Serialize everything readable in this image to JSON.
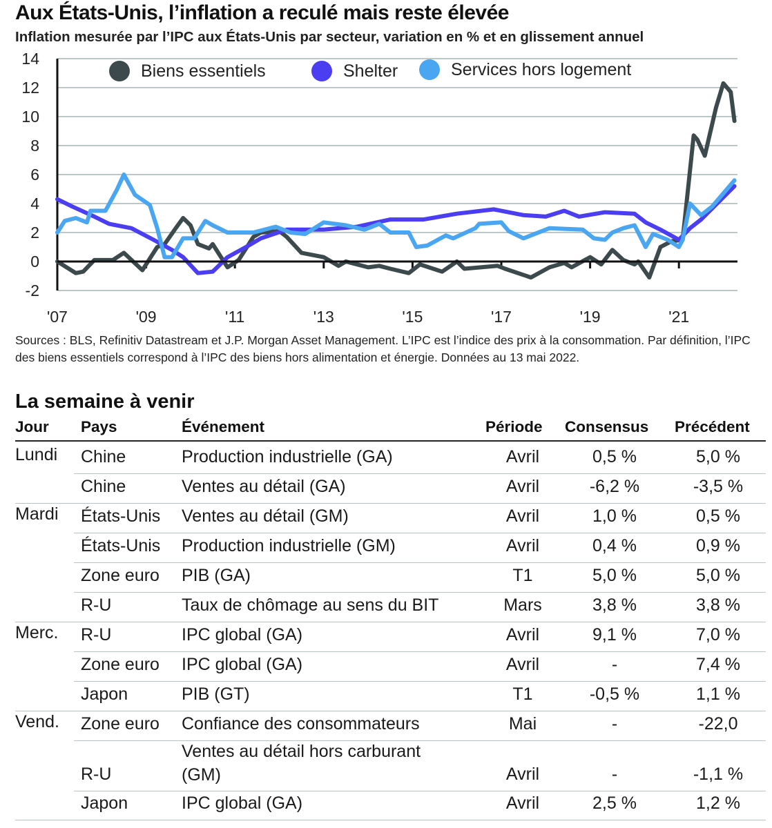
{
  "title": "Aux États-Unis, l’inflation a reculé mais reste élevée",
  "subtitle": "Inflation mesurée par l’IPC aux États-Unis par secteur, variation en % et en glissement annuel",
  "chart_data": {
    "type": "line",
    "title": "Aux États-Unis, l’inflation a reculé mais reste élevée",
    "ylim": [
      -2,
      14
    ],
    "yticks": [
      "14",
      "12",
      "10",
      "8",
      "6",
      "4",
      "2",
      "0",
      "-2"
    ],
    "xticks": [
      "'07",
      "'09",
      "'11",
      "'13",
      "'15",
      "'17",
      "'19",
      "'21"
    ],
    "xlim": [
      "2007-01",
      "2022-04"
    ],
    "grid": true,
    "legend_position": "top",
    "series": [
      {
        "name": "Biens essentiels",
        "color": "#3d4a4d",
        "points": [
          [
            "2007-01",
            0
          ],
          [
            "2007-06",
            -0.8
          ],
          [
            "2007-08",
            -0.7
          ],
          [
            "2007-11",
            0.1
          ],
          [
            "2008-04",
            0.1
          ],
          [
            "2008-07",
            0.6
          ],
          [
            "2008-12",
            -0.6
          ],
          [
            "2009-04",
            1.0
          ],
          [
            "2009-06",
            1.2
          ],
          [
            "2009-09",
            2.3
          ],
          [
            "2009-11",
            3.0
          ],
          [
            "2010-01",
            2.5
          ],
          [
            "2010-03",
            1.2
          ],
          [
            "2010-06",
            0.9
          ],
          [
            "2010-07",
            1.2
          ],
          [
            "2010-11",
            -0.4
          ],
          [
            "2011-02",
            0.1
          ],
          [
            "2011-06",
            1.7
          ],
          [
            "2011-08",
            2.0
          ],
          [
            "2012-01",
            2.1
          ],
          [
            "2012-03",
            1.7
          ],
          [
            "2012-07",
            0.6
          ],
          [
            "2013-01",
            0.3
          ],
          [
            "2013-05",
            -0.3
          ],
          [
            "2013-07",
            0
          ],
          [
            "2014-01",
            -0.4
          ],
          [
            "2014-04",
            -0.3
          ],
          [
            "2014-07",
            -0.5
          ],
          [
            "2014-12",
            -0.8
          ],
          [
            "2015-03",
            -0.2
          ],
          [
            "2015-09",
            -0.7
          ],
          [
            "2016-01",
            0.0
          ],
          [
            "2016-03",
            -0.5
          ],
          [
            "2016-12",
            -0.3
          ],
          [
            "2017-02",
            -0.5
          ],
          [
            "2017-09",
            -1.1
          ],
          [
            "2018-02",
            -0.4
          ],
          [
            "2018-06",
            -0.1
          ],
          [
            "2018-08",
            -0.4
          ],
          [
            "2019-01",
            0.3
          ],
          [
            "2019-04",
            -0.2
          ],
          [
            "2019-07",
            0.8
          ],
          [
            "2019-10",
            0.1
          ],
          [
            "2020-01",
            -0.2
          ],
          [
            "2020-02",
            0
          ],
          [
            "2020-05",
            -1.1
          ],
          [
            "2020-08",
            1.0
          ],
          [
            "2020-11",
            1.4
          ],
          [
            "2021-02",
            1.5
          ],
          [
            "2021-05",
            8.7
          ],
          [
            "2021-06",
            8.4
          ],
          [
            "2021-08",
            7.3
          ],
          [
            "2021-11",
            10.6
          ],
          [
            "2022-01",
            12.3
          ],
          [
            "2022-03",
            11.7
          ],
          [
            "2022-04",
            9.7
          ]
        ]
      },
      {
        "name": "Shelter",
        "color": "#4b3df0",
        "points": [
          [
            "2007-01",
            4.3
          ],
          [
            "2007-05",
            3.8
          ],
          [
            "2007-11",
            3.1
          ],
          [
            "2008-03",
            2.6
          ],
          [
            "2008-09",
            2.3
          ],
          [
            "2009-03",
            1.5
          ],
          [
            "2009-08",
            0.8
          ],
          [
            "2009-11",
            0.3
          ],
          [
            "2010-03",
            -0.8
          ],
          [
            "2010-07",
            -0.7
          ],
          [
            "2010-11",
            0.3
          ],
          [
            "2011-04",
            1.0
          ],
          [
            "2011-08",
            1.6
          ],
          [
            "2012-03",
            2.2
          ],
          [
            "2013-01",
            2.2
          ],
          [
            "2013-10",
            2.4
          ],
          [
            "2014-07",
            2.9
          ],
          [
            "2015-04",
            2.9
          ],
          [
            "2016-01",
            3.3
          ],
          [
            "2016-11",
            3.6
          ],
          [
            "2017-07",
            3.2
          ],
          [
            "2018-01",
            3.1
          ],
          [
            "2018-06",
            3.5
          ],
          [
            "2018-10",
            3.1
          ],
          [
            "2019-05",
            3.4
          ],
          [
            "2020-01",
            3.3
          ],
          [
            "2020-04",
            2.7
          ],
          [
            "2020-08",
            2.2
          ],
          [
            "2021-01",
            1.5
          ],
          [
            "2021-04",
            2.3
          ],
          [
            "2021-07",
            2.9
          ],
          [
            "2022-04",
            5.2
          ]
        ]
      },
      {
        "name": "Services hors logement",
        "color": "#4aa6f0",
        "points": [
          [
            "2007-01",
            2.0
          ],
          [
            "2007-03",
            2.8
          ],
          [
            "2007-06",
            3.0
          ],
          [
            "2007-09",
            2.7
          ],
          [
            "2007-10",
            3.5
          ],
          [
            "2008-02",
            3.5
          ],
          [
            "2008-05",
            4.9
          ],
          [
            "2008-07",
            6.0
          ],
          [
            "2008-10",
            4.6
          ],
          [
            "2009-02",
            3.9
          ],
          [
            "2009-04",
            2.3
          ],
          [
            "2009-06",
            0.3
          ],
          [
            "2009-08",
            0.3
          ],
          [
            "2009-11",
            1.6
          ],
          [
            "2010-02",
            1.6
          ],
          [
            "2010-05",
            2.8
          ],
          [
            "2010-07",
            2.5
          ],
          [
            "2010-11",
            2.0
          ],
          [
            "2011-06",
            2.0
          ],
          [
            "2011-12",
            2.4
          ],
          [
            "2012-04",
            2.0
          ],
          [
            "2012-08",
            1.9
          ],
          [
            "2013-01",
            2.7
          ],
          [
            "2013-07",
            2.5
          ],
          [
            "2013-12",
            2.2
          ],
          [
            "2014-04",
            2.6
          ],
          [
            "2014-07",
            2.0
          ],
          [
            "2014-12",
            2.0
          ],
          [
            "2015-02",
            1.0
          ],
          [
            "2015-05",
            1.1
          ],
          [
            "2015-10",
            1.8
          ],
          [
            "2015-12",
            1.6
          ],
          [
            "2016-06",
            2.3
          ],
          [
            "2016-07",
            2.6
          ],
          [
            "2017-01",
            2.7
          ],
          [
            "2017-03",
            2.1
          ],
          [
            "2017-07",
            1.6
          ],
          [
            "2018-02",
            2.3
          ],
          [
            "2018-11",
            2.2
          ],
          [
            "2019-02",
            1.6
          ],
          [
            "2019-05",
            1.5
          ],
          [
            "2019-07",
            2.0
          ],
          [
            "2019-10",
            2.3
          ],
          [
            "2020-01",
            2.5
          ],
          [
            "2020-04",
            1.0
          ],
          [
            "2020-06",
            1.9
          ],
          [
            "2020-10",
            1.5
          ],
          [
            "2021-01",
            1.0
          ],
          [
            "2021-02",
            1.5
          ],
          [
            "2021-04",
            4.0
          ],
          [
            "2021-07",
            3.2
          ],
          [
            "2021-10",
            3.8
          ],
          [
            "2022-04",
            5.6
          ]
        ]
      }
    ]
  },
  "sources": "Sources : BLS, Refinitiv Datastream et J.P. Morgan Asset Management. L’IPC est l’indice des prix à la consommation. Par définition, l’IPC des biens essentiels correspond à l’IPC des biens hors alimentation et énergie. Données au 13 mai 2022.",
  "table": {
    "title": "La semaine à venir",
    "headers": [
      "Jour",
      "Pays",
      "Événement",
      "Période",
      "Consensus",
      "Précédent"
    ],
    "rows": [
      {
        "day": "Lundi",
        "country": "Chine",
        "event": "Production industrielle (GA)",
        "period": "Avril",
        "consensus": "0,5 %",
        "previous": "5,0 %"
      },
      {
        "day": "",
        "country": "Chine",
        "event": "Ventes au détail (GA)",
        "period": "Avril",
        "consensus": "-6,2 %",
        "previous": "-3,5 %"
      },
      {
        "day": "Mardi",
        "country": "États-Unis",
        "event": "Ventes au détail (GM)",
        "period": "Avril",
        "consensus": "1,0 %",
        "previous": "0,5 %"
      },
      {
        "day": "",
        "country": "États-Unis",
        "event": "Production industrielle (GM)",
        "period": "Avril",
        "consensus": "0,4 %",
        "previous": "0,9 %"
      },
      {
        "day": "",
        "country": "Zone euro",
        "event": "PIB (GA)",
        "period": "T1",
        "consensus": "5,0 %",
        "previous": "5,0 %"
      },
      {
        "day": "",
        "country": "R-U",
        "event": "Taux de chômage au sens du BIT",
        "period": "Mars",
        "consensus": "3,8 %",
        "previous": "3,8 %"
      },
      {
        "day": "Merc.",
        "country": "R-U",
        "event": "IPC global (GA)",
        "period": "Avril",
        "consensus": "9,1 %",
        "previous": "7,0 %"
      },
      {
        "day": "",
        "country": "Zone euro",
        "event": "IPC global (GA)",
        "period": "Avril",
        "consensus": "-",
        "previous": "7,4 %"
      },
      {
        "day": "",
        "country": "Japon",
        "event": "PIB (GT)",
        "period": "T1",
        "consensus": "-0,5 %",
        "previous": "1,1 %"
      },
      {
        "day": "Vend.",
        "country": "Zone euro",
        "event": "Confiance des consommateurs",
        "period": "Mai",
        "consensus": "-",
        "previous": "-22,0"
      },
      {
        "day": "",
        "country": "R-U",
        "event": "Ventes au détail hors carburant (GM)",
        "event_line1": "Ventes au détail hors carburant",
        "event_line2": "(GM)",
        "period": "Avril",
        "consensus": "-",
        "previous": "-1,1 %"
      },
      {
        "day": "",
        "country": "Japon",
        "event": "IPC global (GA)",
        "period": "Avril",
        "consensus": "2,5 %",
        "previous": "1,2 %"
      }
    ]
  }
}
